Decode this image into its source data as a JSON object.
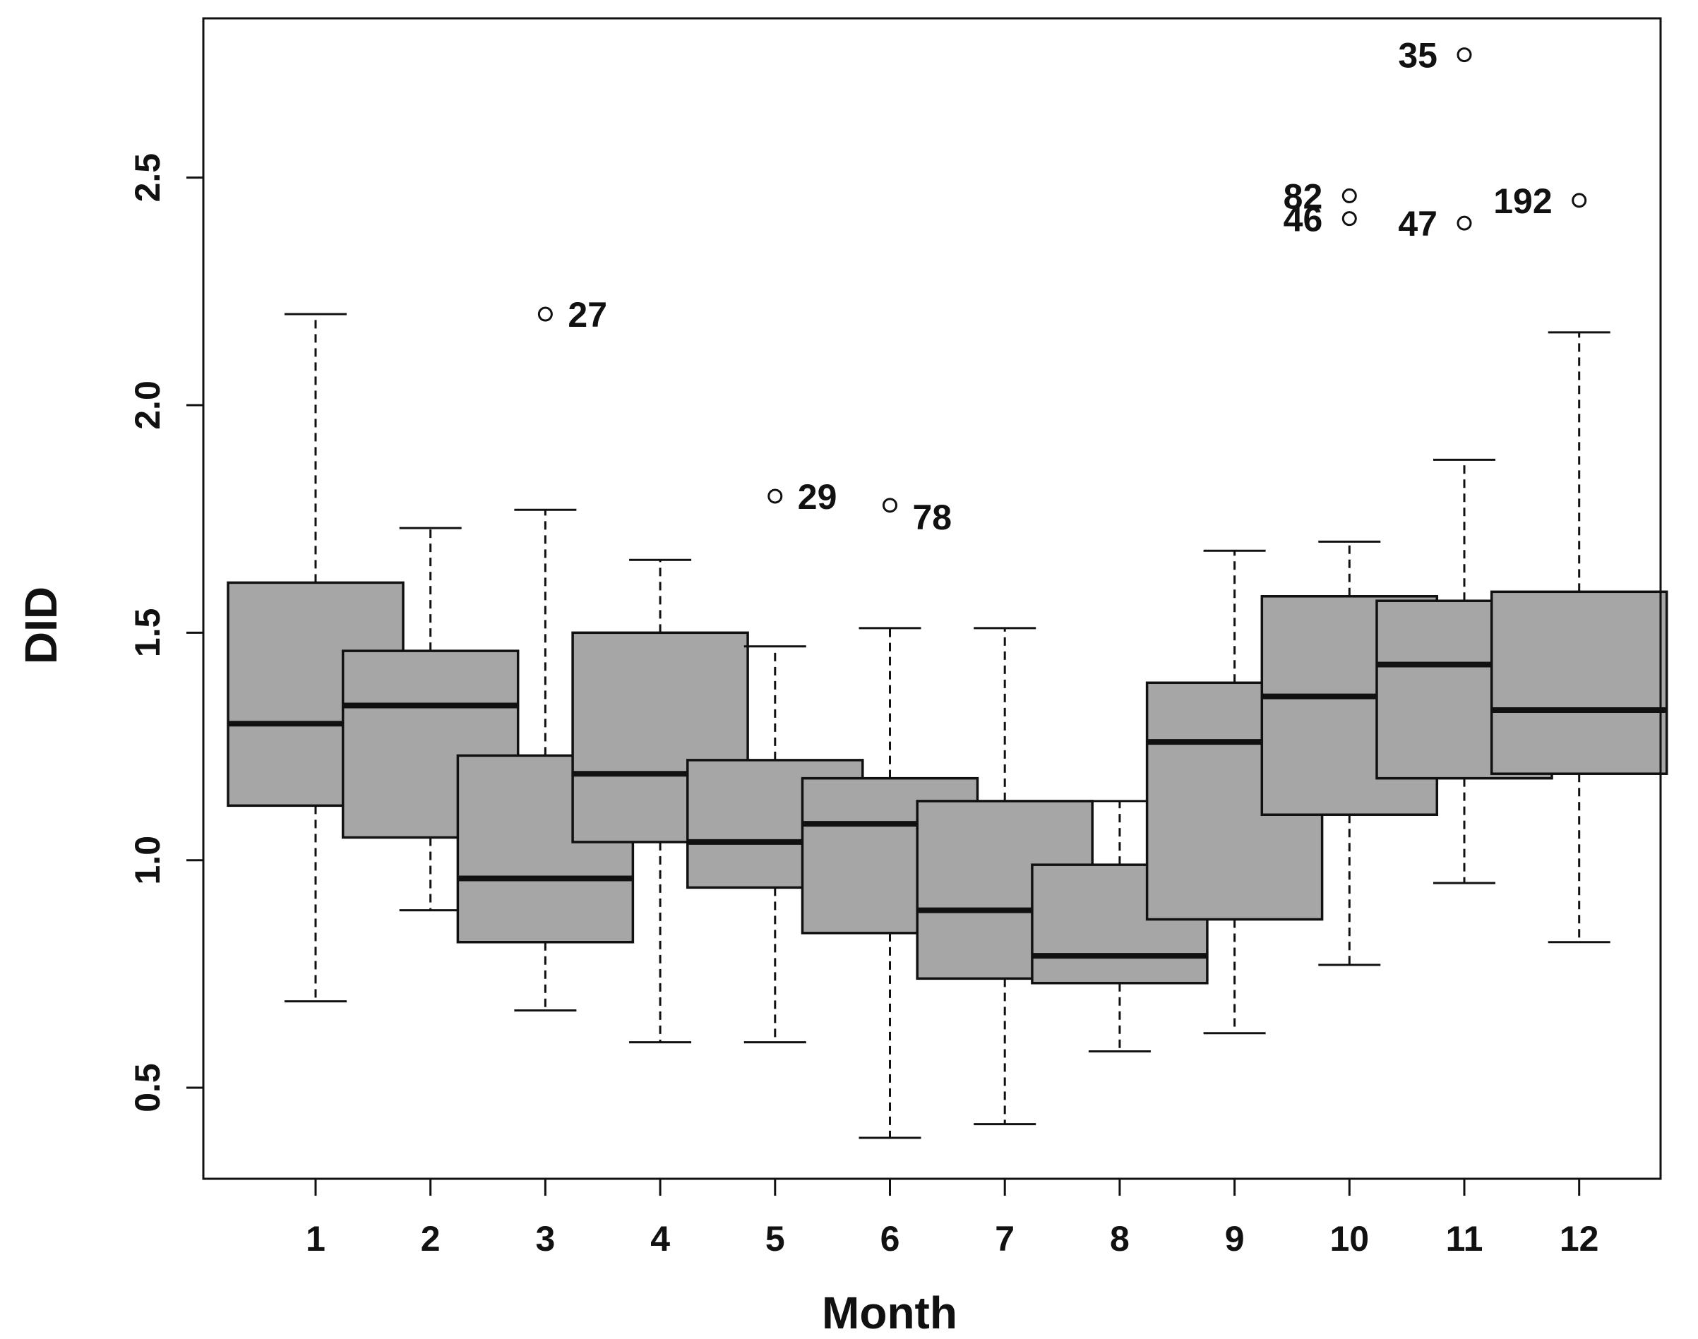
{
  "chart_data": {
    "type": "boxplot",
    "title": "",
    "xlabel": "Month",
    "ylabel": "DID",
    "ylim": [
      0.3,
      2.85
    ],
    "y_ticks": [
      "0.5",
      "1.0",
      "1.5",
      "2.0",
      "2.5"
    ],
    "categories": [
      "1",
      "2",
      "3",
      "4",
      "5",
      "6",
      "7",
      "8",
      "9",
      "10",
      "11",
      "12"
    ],
    "box_fill_color": "#a6a6a6",
    "line_color": "#111111",
    "boxes": [
      {
        "month": "1",
        "whisker_low": 0.69,
        "q1": 1.12,
        "median": 1.3,
        "q3": 1.61,
        "whisker_high": 2.2
      },
      {
        "month": "2",
        "whisker_low": 0.89,
        "q1": 1.05,
        "median": 1.34,
        "q3": 1.46,
        "whisker_high": 1.73
      },
      {
        "month": "3",
        "whisker_low": 0.67,
        "q1": 0.82,
        "median": 0.96,
        "q3": 1.23,
        "whisker_high": 1.77
      },
      {
        "month": "4",
        "whisker_low": 0.6,
        "q1": 1.04,
        "median": 1.19,
        "q3": 1.5,
        "whisker_high": 1.66
      },
      {
        "month": "5",
        "whisker_low": 0.6,
        "q1": 0.94,
        "median": 1.04,
        "q3": 1.22,
        "whisker_high": 1.47
      },
      {
        "month": "6",
        "whisker_low": 0.39,
        "q1": 0.84,
        "median": 1.08,
        "q3": 1.18,
        "whisker_high": 1.51
      },
      {
        "month": "7",
        "whisker_low": 0.42,
        "q1": 0.74,
        "median": 0.89,
        "q3": 1.13,
        "whisker_high": 1.51
      },
      {
        "month": "8",
        "whisker_low": 0.58,
        "q1": 0.73,
        "median": 0.79,
        "q3": 0.99,
        "whisker_high": 1.13
      },
      {
        "month": "9",
        "whisker_low": 0.62,
        "q1": 0.87,
        "median": 1.26,
        "q3": 1.39,
        "whisker_high": 1.68
      },
      {
        "month": "10",
        "whisker_low": 0.77,
        "q1": 1.1,
        "median": 1.36,
        "q3": 1.58,
        "whisker_high": 1.7
      },
      {
        "month": "11",
        "whisker_low": 0.95,
        "q1": 1.18,
        "median": 1.43,
        "q3": 1.57,
        "whisker_high": 1.88
      },
      {
        "month": "12",
        "whisker_low": 0.82,
        "q1": 1.19,
        "median": 1.33,
        "q3": 1.59,
        "whisker_high": 2.16
      }
    ],
    "outliers": [
      {
        "month": "3",
        "value": 2.2,
        "label": "27",
        "label_side": "right"
      },
      {
        "month": "5",
        "value": 1.8,
        "label": "29",
        "label_side": "right"
      },
      {
        "month": "6",
        "value": 1.78,
        "label": "78",
        "label_side": "right-low"
      },
      {
        "month": "10",
        "value": 2.46,
        "label": "82",
        "label_side": "left"
      },
      {
        "month": "10",
        "value": 2.41,
        "label": "46",
        "label_side": "left"
      },
      {
        "month": "11",
        "value": 2.77,
        "label": "35",
        "label_side": "left"
      },
      {
        "month": "11",
        "value": 2.4,
        "label": "47",
        "label_side": "left"
      },
      {
        "month": "12",
        "value": 2.45,
        "label": "192",
        "label_side": "left"
      }
    ]
  }
}
